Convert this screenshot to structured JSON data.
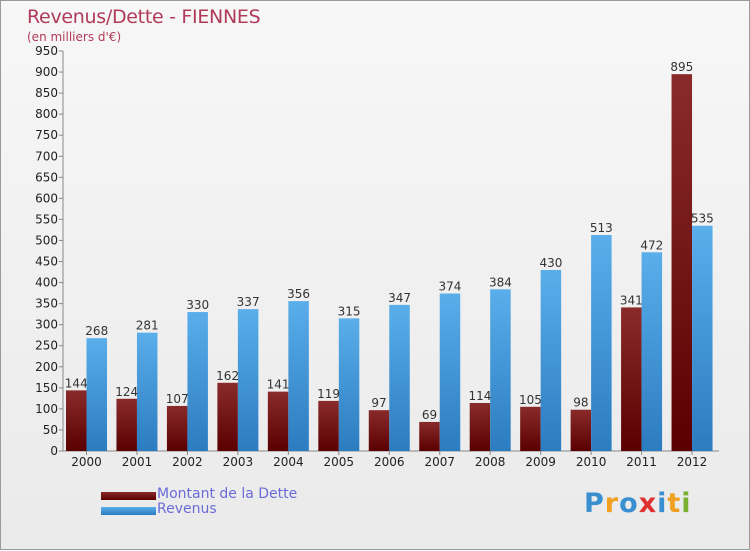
{
  "title": "Revenus/Dette - FIENNES",
  "subtitle": "(en milliers d'€)",
  "colors": {
    "dette_top": "#8a2b2b",
    "dette_bottom": "#5a0000",
    "revenus_top": "#5aaeea",
    "revenus_bottom": "#2b7cc0",
    "label": "#333333",
    "title": "#b03a5b"
  },
  "legend": {
    "dette": "Montant de la Dette",
    "revenus": "Revenus"
  },
  "logo": {
    "text": "Proxiti",
    "letters": [
      {
        "ch": "P",
        "color": "#3a8fd0"
      },
      {
        "ch": "r",
        "color": "#f0a020"
      },
      {
        "ch": "o",
        "color": "#3a8fd0"
      },
      {
        "ch": "x",
        "color": "#e03030"
      },
      {
        "ch": "i",
        "color": "#3a8fd0"
      },
      {
        "ch": "t",
        "color": "#f0a020"
      },
      {
        "ch": "i",
        "color": "#7ab030"
      }
    ]
  },
  "chart_data": {
    "type": "bar",
    "title": "Revenus/Dette - FIENNES",
    "subtitle": "(en milliers d'€)",
    "xlabel": "",
    "ylabel": "",
    "ylim": [
      0,
      950
    ],
    "ytick_step": 50,
    "grid": false,
    "legend_position": "bottom-left",
    "categories": [
      "2000",
      "2001",
      "2002",
      "2003",
      "2004",
      "2005",
      "2006",
      "2007",
      "2008",
      "2009",
      "2010",
      "2011",
      "2012"
    ],
    "series": [
      {
        "name": "Montant de la Dette",
        "values": [
          144,
          124,
          107,
          162,
          141,
          119,
          97,
          69,
          114,
          105,
          98,
          341,
          895
        ]
      },
      {
        "name": "Revenus",
        "values": [
          268,
          281,
          330,
          337,
          356,
          315,
          347,
          374,
          384,
          430,
          513,
          472,
          535
        ]
      }
    ]
  }
}
